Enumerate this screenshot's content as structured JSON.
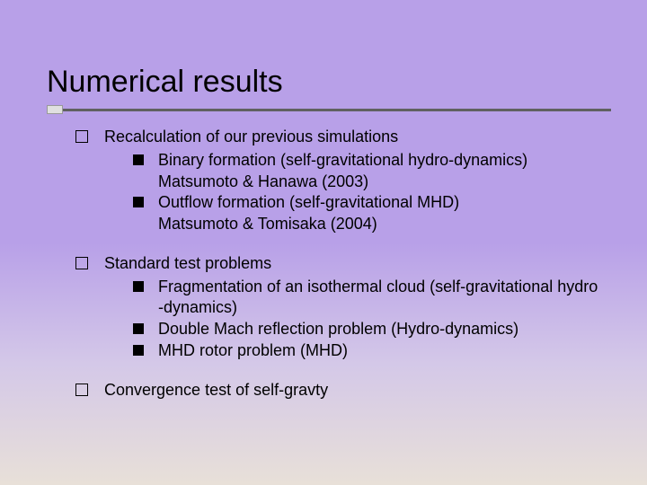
{
  "title": "Numerical results",
  "title_fontsize": 34,
  "body_fontsize": 18,
  "background_gradient": {
    "top": "#b8a0e8",
    "bottom": "#e8e0d8"
  },
  "underline_color": "#606060",
  "text_color": "#000000",
  "items": [
    {
      "label": "Recalculation of our previous simulations",
      "sub": [
        {
          "line1": "Binary formation (self-gravitational hydro-dynamics)",
          "line2": "Matsumoto & Hanawa (2003)"
        },
        {
          "line1": "Outflow formation (self-gravitational MHD)",
          "line2": "Matsumoto & Tomisaka (2004)"
        }
      ]
    },
    {
      "label": "Standard test problems",
      "sub": [
        {
          "line1": "Fragmentation of an isothermal cloud (self-gravitational hydro",
          "line2": "-dynamics)"
        },
        {
          "line1": "Double Mach reflection problem (Hydro-dynamics)"
        },
        {
          "line1": "MHD rotor problem (MHD)"
        }
      ]
    },
    {
      "label": "Convergence test of self-gravty",
      "sub": []
    }
  ]
}
